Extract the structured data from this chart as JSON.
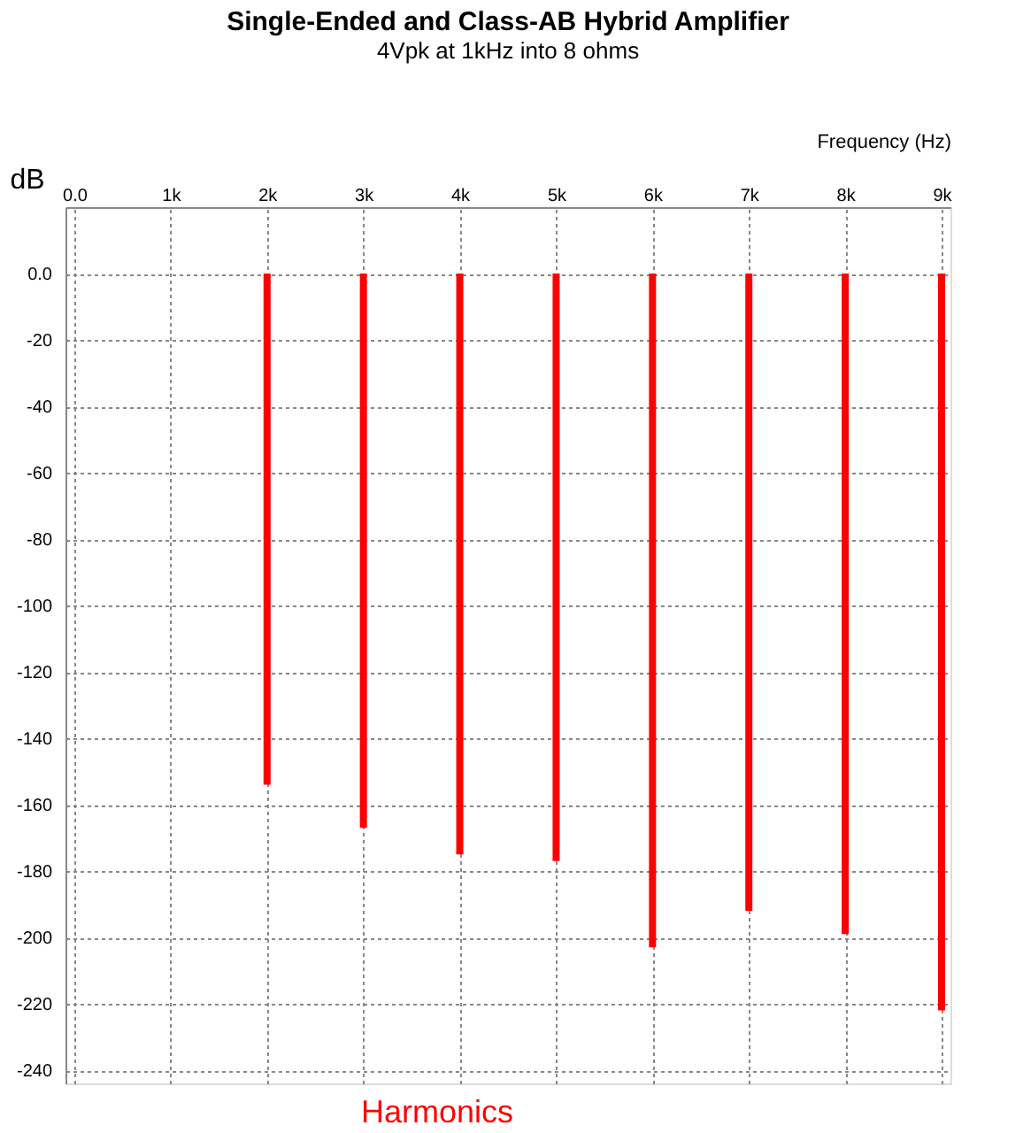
{
  "chart_data": {
    "type": "bar",
    "title": "Single-Ended and Class-AB Hybrid Amplifier",
    "subtitle": "4Vpk at 1kHz into 8 ohms",
    "xlabel": "Frequency   (Hz)",
    "ylabel": "dB",
    "x": [
      1000,
      2000,
      3000,
      4000,
      5000,
      6000,
      7000,
      8000,
      9000
    ],
    "values": [
      0,
      -154,
      -167,
      -175,
      -177,
      -203,
      -192,
      -199,
      -222
    ],
    "color": "#ff0000",
    "xlim": [
      0,
      9000
    ],
    "xticks": [
      {
        "value": 0,
        "label": "0.0"
      },
      {
        "value": 1000,
        "label": "1k"
      },
      {
        "value": 2000,
        "label": "2k"
      },
      {
        "value": 3000,
        "label": "3k"
      },
      {
        "value": 4000,
        "label": "4k"
      },
      {
        "value": 5000,
        "label": "5k"
      },
      {
        "value": 6000,
        "label": "6k"
      },
      {
        "value": 7000,
        "label": "7k"
      },
      {
        "value": 8000,
        "label": "8k"
      },
      {
        "value": 9000,
        "label": "9k"
      }
    ],
    "ylim": [
      -244,
      20
    ],
    "yticks": [
      {
        "value": 0,
        "label": "0.0"
      },
      -20,
      -40,
      -60,
      -80,
      -100,
      -120,
      -140,
      -160,
      -180,
      -200,
      -220,
      -240
    ],
    "grid": true,
    "annotations": [
      "Harmonics"
    ]
  }
}
